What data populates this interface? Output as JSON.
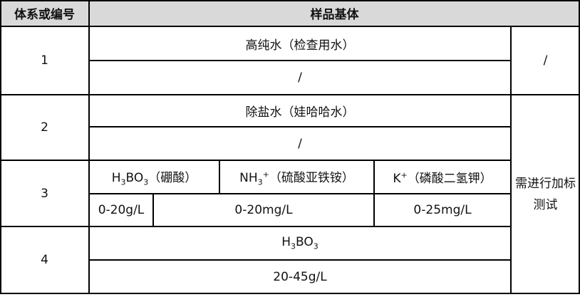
{
  "header": {
    "col1": "体系或编号",
    "col2": "样品基体"
  },
  "rows": [
    {
      "id": "1",
      "matrix": "高纯水（检查用水）",
      "range": "/"
    },
    {
      "id": "2",
      "matrix": "除盐水（娃哈哈水）",
      "range": "/"
    },
    {
      "id": "3",
      "matrix_parts": [
        {
          "a": "H",
          "sub1": "3",
          "b": "BO",
          "sub2": "3",
          "name": "（硼酸）"
        },
        {
          "a": "NH",
          "sub1": "3",
          "sup": "+",
          "name": "（硫酸亚铁铵）"
        },
        {
          "a": "K",
          "sup": "+",
          "name": "（磷酸二氢钾）"
        }
      ],
      "ranges": [
        "0-20g/L",
        "0-20mg/L",
        "0-25mg/L"
      ]
    },
    {
      "id": "4",
      "matrix": {
        "a": "H",
        "sub1": "3",
        "b": "BO",
        "sub2": "3"
      },
      "range": "20-45g/L"
    }
  ],
  "note_row1": "/",
  "note_rows234": "需进行加标测试",
  "colors": {
    "header_bg": "#d9d9d9",
    "border": "#000000"
  }
}
